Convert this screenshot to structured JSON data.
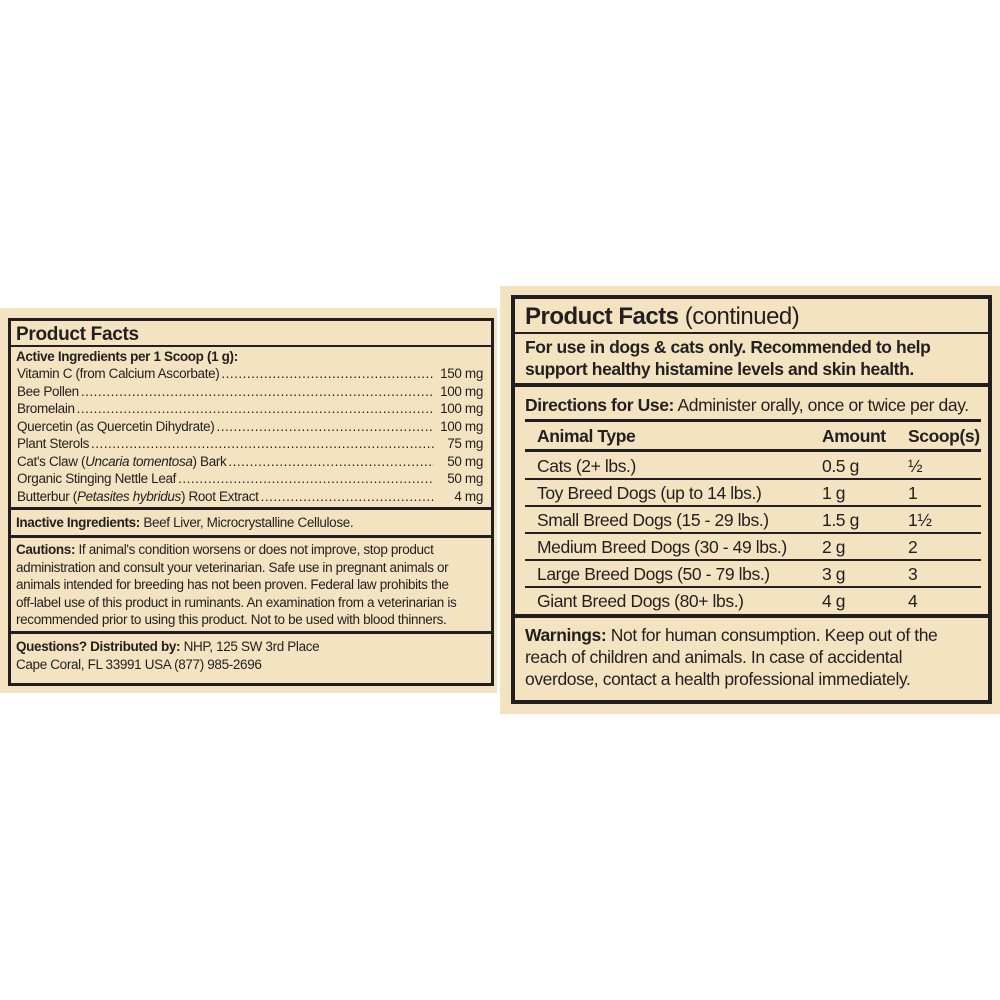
{
  "left_panel": {
    "title": "Product  Facts",
    "active_header": "Active Ingredients per 1 Scoop (1 g):",
    "ingredients": [
      {
        "pre": "Vitamin C (from Calcium Ascorbate)",
        "italic": "",
        "post": "",
        "amount": "150 mg"
      },
      {
        "pre": "Bee Pollen",
        "italic": "",
        "post": "",
        "amount": "100 mg"
      },
      {
        "pre": "Bromelain",
        "italic": "",
        "post": "",
        "amount": "100 mg"
      },
      {
        "pre": "Quercetin (as Quercetin Dihydrate)",
        "italic": "",
        "post": "",
        "amount": "100 mg"
      },
      {
        "pre": "Plant Sterols",
        "italic": "",
        "post": "",
        "amount": "75 mg"
      },
      {
        "pre": "Cat's Claw (",
        "italic": "Uncaria tomentosa",
        "post": ") Bark",
        "amount": "50 mg"
      },
      {
        "pre": "Organic Stinging Nettle Leaf",
        "italic": "",
        "post": "",
        "amount": "50 mg"
      },
      {
        "pre": "Butterbur (",
        "italic": "Petasites hybridus",
        "post": ") Root Extract",
        "amount": "4 mg"
      }
    ],
    "inactive_label": "Inactive Ingredients:",
    "inactive_text": " Beef Liver, Microcrystalline Cellulose.",
    "cautions_label": "Cautions:",
    "cautions_lines": [
      " If animal's condition worsens or does not improve, stop product",
      "administration and consult your veterinarian. Safe use in pregnant animals or",
      "animals intended for breeding has not been proven. Federal law prohibits the",
      "off-label use of this product in ruminants. An examination from a veterinarian is",
      "recommended prior to using this product. Not to be used with blood thinners."
    ],
    "questions_label": "Questions? Distributed by:",
    "questions_line1": " NHP, 125 SW 3rd Place",
    "questions_line2": "Cape Coral, FL 33991 USA  (877) 985-2696"
  },
  "right_panel": {
    "title": "Product  Facts",
    "title_suffix": " (continued)",
    "tagline_lines": [
      "For use in dogs & cats only. Recommended to help",
      "support healthy histamine levels and skin health."
    ],
    "directions_label": "Directions for Use:",
    "directions_text": " Administer orally, once or twice per day.",
    "table": {
      "headers": [
        "Animal Type",
        "Amount",
        "Scoop(s)"
      ],
      "rows": [
        [
          "Cats (2+ lbs.)",
          "0.5 g",
          "½"
        ],
        [
          "Toy Breed Dogs (up to 14 lbs.)",
          "1 g",
          "1"
        ],
        [
          "Small Breed Dogs (15 - 29 lbs.)",
          "1.5 g",
          "1½"
        ],
        [
          "Medium Breed Dogs (30 - 49 lbs.)",
          "2 g",
          "2"
        ],
        [
          "Large Breed Dogs (50 - 79 lbs.)",
          "3 g",
          "3"
        ],
        [
          "Giant Breed Dogs (80+ lbs.)",
          "4 g",
          "4"
        ]
      ]
    },
    "warnings_label": "Warnings:",
    "warnings_lines": [
      " Not for human consumption. Keep out of the",
      "reach of children and animals. In case of accidental",
      "overdose, contact a health professional immediately."
    ]
  }
}
